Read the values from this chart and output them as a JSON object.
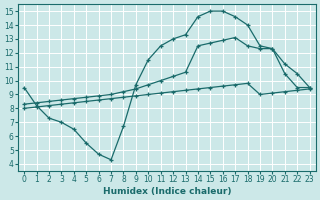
{
  "xlabel": "Humidex (Indice chaleur)",
  "ylabel": "",
  "xlim": [
    -0.5,
    23.5
  ],
  "ylim": [
    3.5,
    15.5
  ],
  "xticks": [
    0,
    1,
    2,
    3,
    4,
    5,
    6,
    7,
    8,
    9,
    10,
    11,
    12,
    13,
    14,
    15,
    16,
    17,
    18,
    19,
    20,
    21,
    22,
    23
  ],
  "yticks": [
    4,
    5,
    6,
    7,
    8,
    9,
    10,
    11,
    12,
    13,
    14,
    15
  ],
  "bg_color": "#cce8e8",
  "line_color": "#1a6b6b",
  "line1_x": [
    0,
    1,
    2,
    3,
    4,
    5,
    6,
    7,
    8,
    9,
    10,
    11,
    12,
    13,
    14,
    15,
    16,
    17,
    18,
    19,
    20,
    21,
    22,
    23
  ],
  "line1_y": [
    9.5,
    8.2,
    7.3,
    7.0,
    6.5,
    5.5,
    4.7,
    4.3,
    6.7,
    9.7,
    11.5,
    12.5,
    13.0,
    13.3,
    14.6,
    15.0,
    15.0,
    14.6,
    14.0,
    12.5,
    12.3,
    10.5,
    9.5,
    9.5
  ],
  "line2_x": [
    0,
    1,
    2,
    3,
    4,
    5,
    6,
    7,
    8,
    9,
    10,
    11,
    12,
    13,
    14,
    15,
    16,
    17,
    18,
    19,
    20,
    21,
    22,
    23
  ],
  "line2_y": [
    8.3,
    8.4,
    8.5,
    8.6,
    8.7,
    8.8,
    8.9,
    9.0,
    9.2,
    9.4,
    9.7,
    10.0,
    10.3,
    10.6,
    12.5,
    12.7,
    12.9,
    13.1,
    12.5,
    12.3,
    12.3,
    11.2,
    10.5,
    9.5
  ],
  "line3_x": [
    0,
    1,
    2,
    3,
    4,
    5,
    6,
    7,
    8,
    9,
    10,
    11,
    12,
    13,
    14,
    15,
    16,
    17,
    18,
    19,
    20,
    21,
    22,
    23
  ],
  "line3_y": [
    8.0,
    8.1,
    8.2,
    8.3,
    8.4,
    8.5,
    8.6,
    8.7,
    8.8,
    8.9,
    9.0,
    9.1,
    9.2,
    9.3,
    9.4,
    9.5,
    9.6,
    9.7,
    9.8,
    9.0,
    9.1,
    9.2,
    9.3,
    9.4
  ]
}
